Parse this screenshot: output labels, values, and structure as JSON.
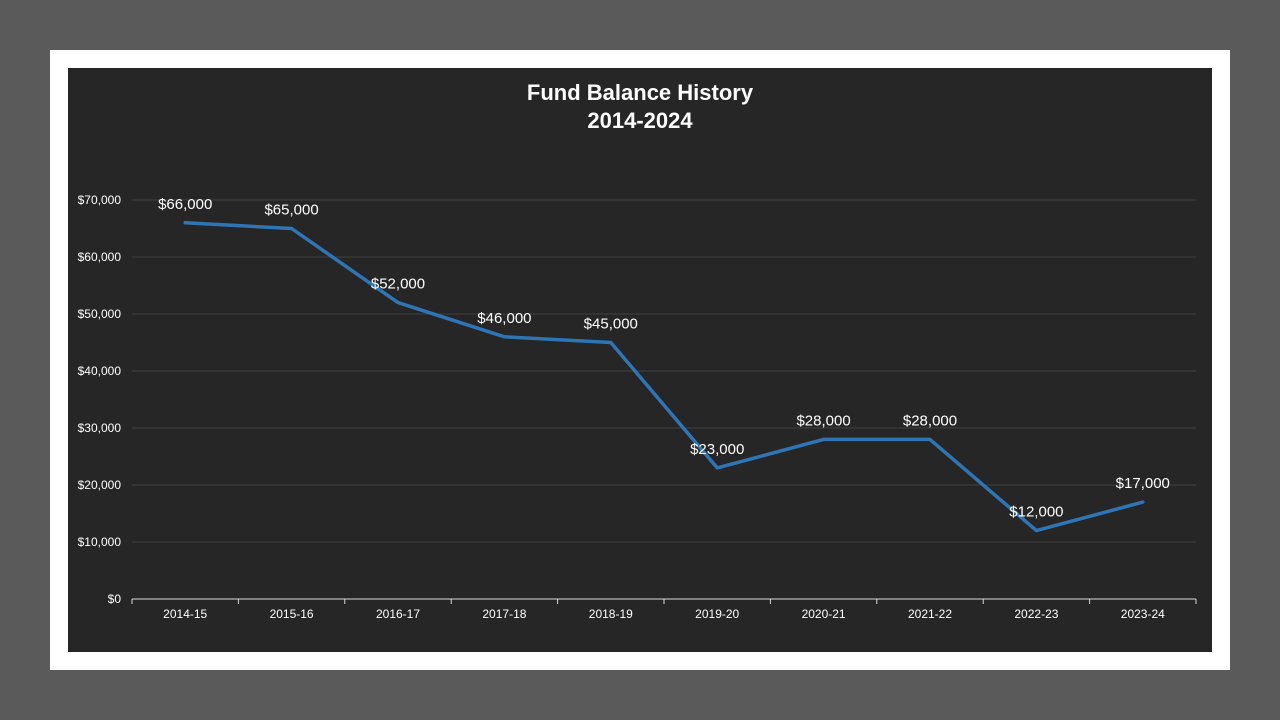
{
  "chart_data": {
    "type": "line",
    "title": "Fund Balance History",
    "subtitle": "2014-2024",
    "categories": [
      "2014-15",
      "2015-16",
      "2016-17",
      "2017-18",
      "2018-19",
      "2019-20",
      "2020-21",
      "2021-22",
      "2022-23",
      "2023-24"
    ],
    "series": [
      {
        "values": [
          66000,
          65000,
          52000,
          46000,
          45000,
          23000,
          28000,
          28000,
          12000,
          17000
        ],
        "data_labels": [
          "$66,000",
          "$65,000",
          "$52,000",
          "$46,000",
          "$45,000",
          "$23,000",
          "$28,000",
          "$28,000",
          "$12,000",
          "$17,000"
        ],
        "color": "#2e75b6"
      }
    ],
    "y_ticks": [
      0,
      10000,
      20000,
      30000,
      40000,
      50000,
      60000,
      70000
    ],
    "y_tick_labels": [
      "$0",
      "$10,000",
      "$20,000",
      "$30,000",
      "$40,000",
      "$50,000",
      "$60,000",
      "$70,000"
    ],
    "ylim": [
      0,
      70000
    ],
    "grid": true,
    "legend": "none",
    "colors": {
      "background": "#262626",
      "frame": "#ffffff",
      "outer": "#5a5a5a",
      "gridline": "#404040",
      "axis": "#d9d9d9",
      "text": "#ffffff"
    }
  }
}
